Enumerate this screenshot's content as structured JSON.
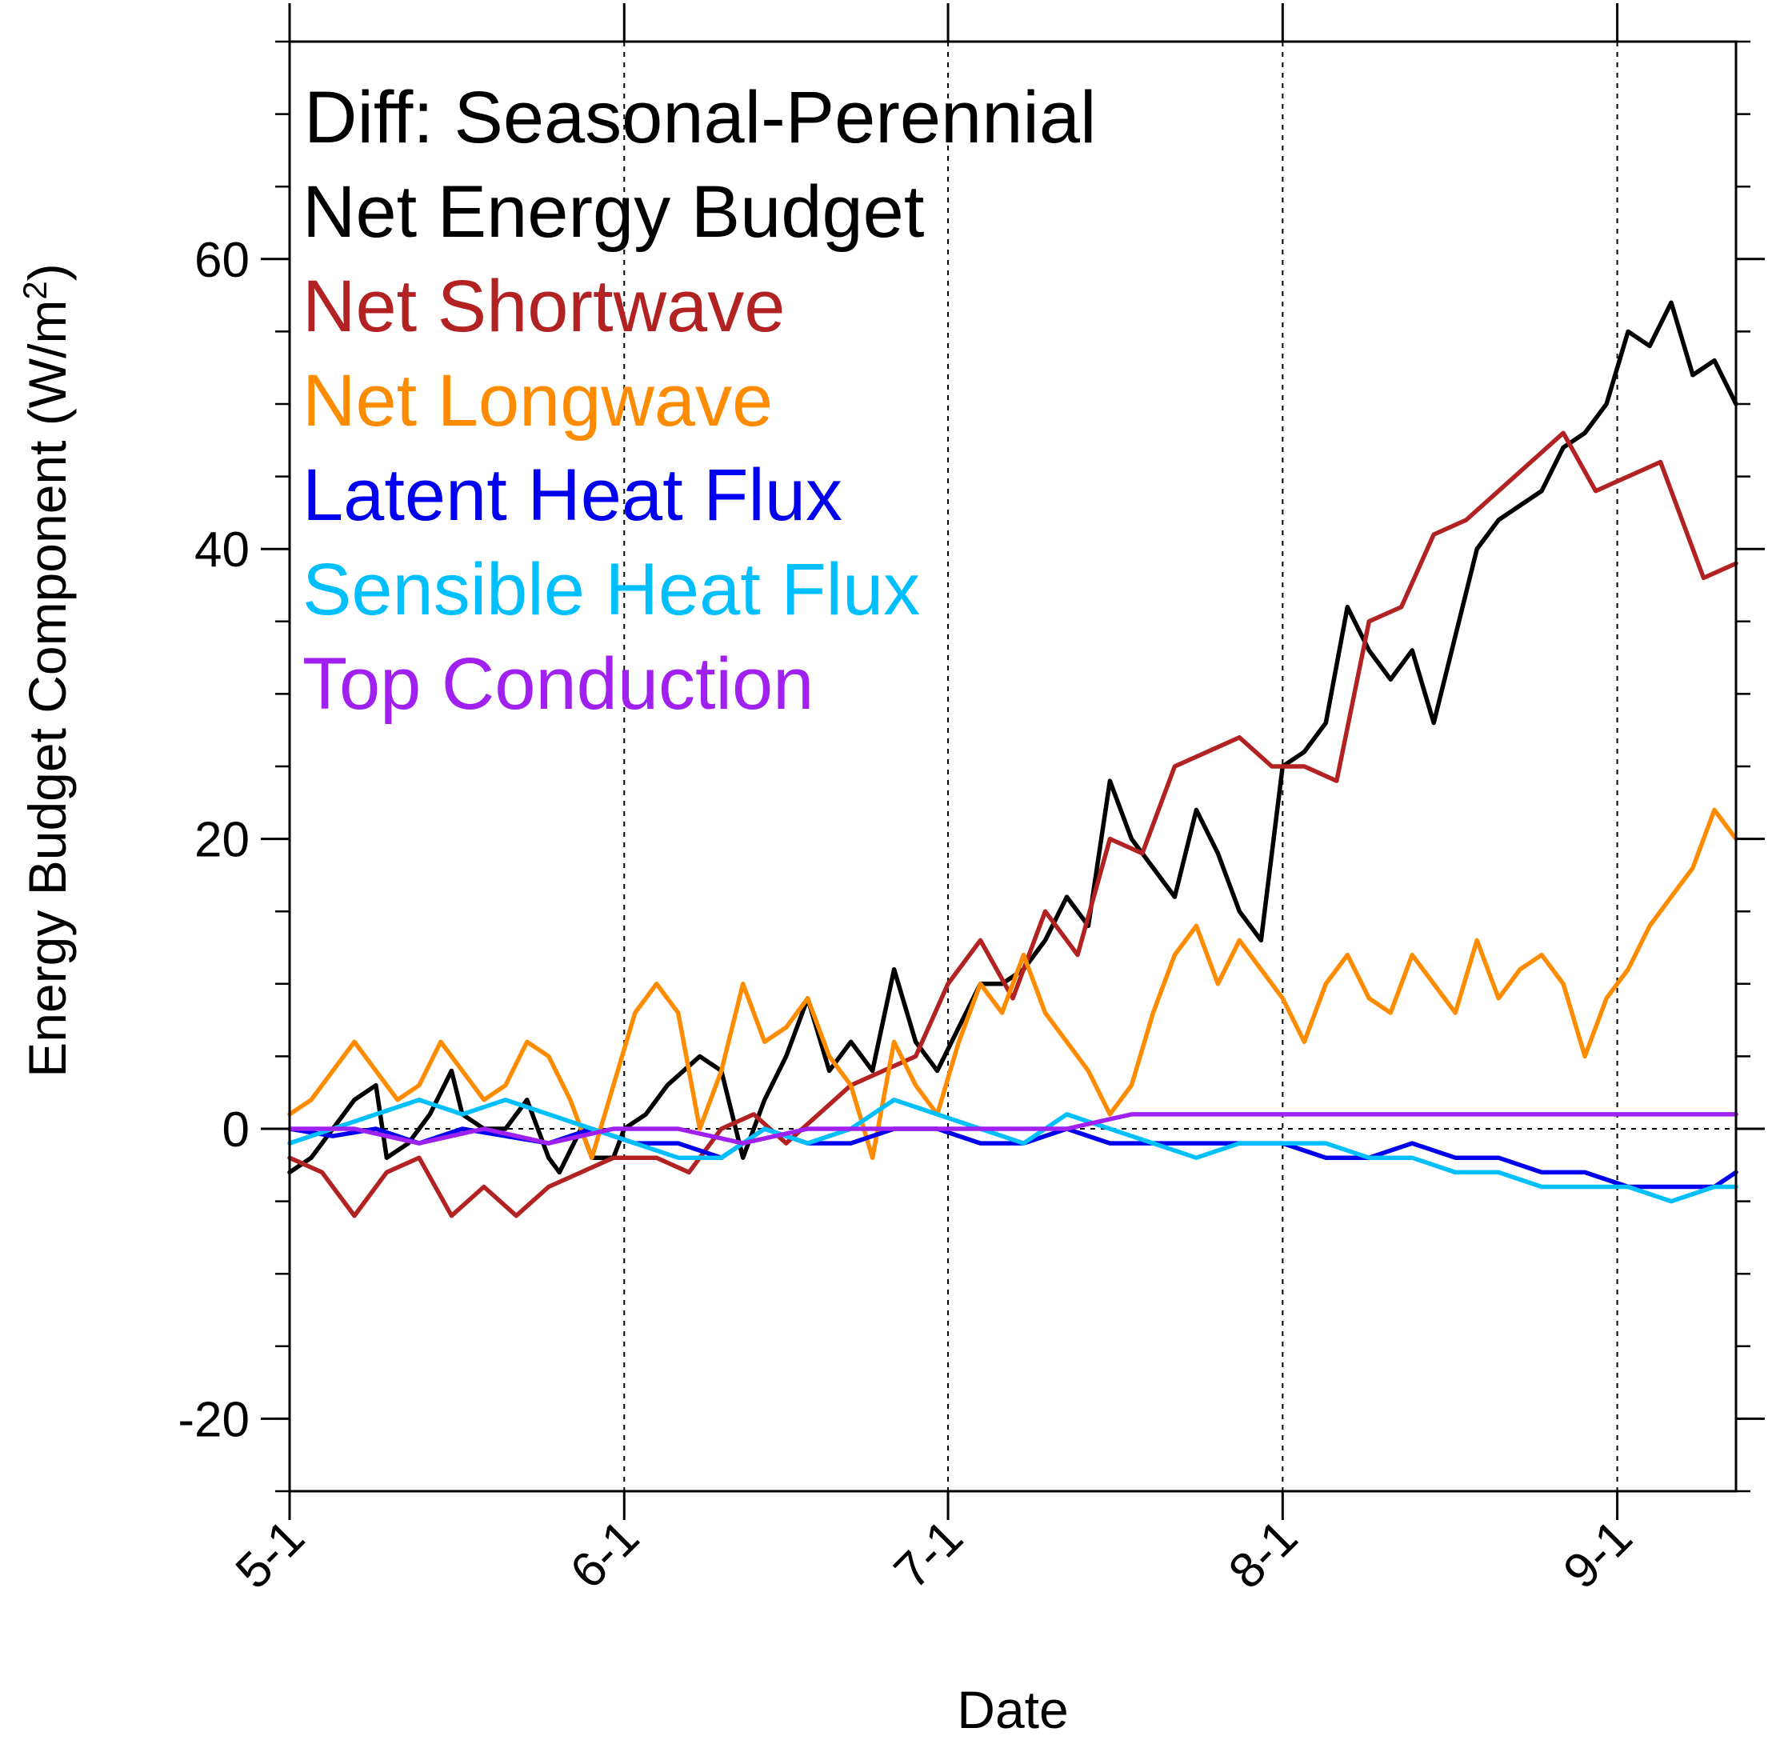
{
  "chart_data": {
    "type": "line",
    "title_lines": [
      "Diff: Seasonal-Perennial"
    ],
    "xlabel": "Date",
    "ylabel": "Energy Budget Component (W/m",
    "ylabel_sup": "2",
    "ylabel_end": ")",
    "xlim": [
      0,
      134
    ],
    "ylim": [
      -25,
      75
    ],
    "x_ticks": [
      {
        "value": 0,
        "label": "5-1"
      },
      {
        "value": 31,
        "label": "6-1"
      },
      {
        "value": 61,
        "label": "7-1"
      },
      {
        "value": 92,
        "label": "8-1"
      },
      {
        "value": 123,
        "label": "9-1"
      }
    ],
    "y_ticks": [
      {
        "value": -20,
        "label": "-20"
      },
      {
        "value": 0,
        "label": "0"
      },
      {
        "value": 20,
        "label": "20"
      },
      {
        "value": 40,
        "label": "40"
      },
      {
        "value": 60,
        "label": "60"
      }
    ],
    "y_minor_step": 5,
    "vertical_gridlines": [
      31,
      61,
      92,
      123
    ],
    "zero_line": true,
    "series": [
      {
        "name": "Net Energy Budget",
        "color": "#000000",
        "points": [
          [
            0,
            -3
          ],
          [
            2,
            -2
          ],
          [
            4,
            0
          ],
          [
            6,
            2
          ],
          [
            8,
            3
          ],
          [
            9,
            -2
          ],
          [
            11,
            -1
          ],
          [
            13,
            1
          ],
          [
            15,
            4
          ],
          [
            16,
            1
          ],
          [
            18,
            0
          ],
          [
            20,
            0
          ],
          [
            22,
            2
          ],
          [
            24,
            -2
          ],
          [
            25,
            -3
          ],
          [
            27,
            0
          ],
          [
            28,
            -2
          ],
          [
            30,
            -2
          ],
          [
            31,
            0
          ],
          [
            33,
            1
          ],
          [
            35,
            3
          ],
          [
            38,
            5
          ],
          [
            40,
            4
          ],
          [
            42,
            -2
          ],
          [
            44,
            2
          ],
          [
            46,
            5
          ],
          [
            48,
            9
          ],
          [
            50,
            4
          ],
          [
            52,
            6
          ],
          [
            54,
            4
          ],
          [
            56,
            11
          ],
          [
            58,
            6
          ],
          [
            60,
            4
          ],
          [
            62,
            7
          ],
          [
            64,
            10
          ],
          [
            66,
            10
          ],
          [
            68,
            11
          ],
          [
            70,
            13
          ],
          [
            72,
            16
          ],
          [
            74,
            14
          ],
          [
            76,
            24
          ],
          [
            78,
            20
          ],
          [
            80,
            18
          ],
          [
            82,
            16
          ],
          [
            84,
            22
          ],
          [
            86,
            19
          ],
          [
            88,
            15
          ],
          [
            90,
            13
          ],
          [
            92,
            25
          ],
          [
            94,
            26
          ],
          [
            96,
            28
          ],
          [
            98,
            36
          ],
          [
            100,
            33
          ],
          [
            102,
            31
          ],
          [
            104,
            33
          ],
          [
            106,
            28
          ],
          [
            108,
            34
          ],
          [
            110,
            40
          ],
          [
            112,
            42
          ],
          [
            114,
            43
          ],
          [
            116,
            44
          ],
          [
            118,
            47
          ],
          [
            120,
            48
          ],
          [
            122,
            50
          ],
          [
            124,
            55
          ],
          [
            126,
            54
          ],
          [
            128,
            57
          ],
          [
            130,
            52
          ],
          [
            132,
            53
          ],
          [
            134,
            50
          ]
        ]
      },
      {
        "name": "Net Shortwave",
        "color": "#b22222",
        "points": [
          [
            0,
            -2
          ],
          [
            3,
            -3
          ],
          [
            6,
            -6
          ],
          [
            9,
            -3
          ],
          [
            12,
            -2
          ],
          [
            15,
            -6
          ],
          [
            18,
            -4
          ],
          [
            21,
            -6
          ],
          [
            24,
            -4
          ],
          [
            27,
            -3
          ],
          [
            30,
            -2
          ],
          [
            31,
            -2
          ],
          [
            34,
            -2
          ],
          [
            37,
            -3
          ],
          [
            40,
            0
          ],
          [
            43,
            1
          ],
          [
            46,
            -1
          ],
          [
            49,
            1
          ],
          [
            52,
            3
          ],
          [
            55,
            4
          ],
          [
            58,
            5
          ],
          [
            61,
            10
          ],
          [
            64,
            13
          ],
          [
            67,
            9
          ],
          [
            70,
            15
          ],
          [
            73,
            12
          ],
          [
            76,
            20
          ],
          [
            79,
            19
          ],
          [
            82,
            25
          ],
          [
            85,
            26
          ],
          [
            88,
            27
          ],
          [
            91,
            25
          ],
          [
            94,
            25
          ],
          [
            97,
            24
          ],
          [
            100,
            35
          ],
          [
            103,
            36
          ],
          [
            106,
            41
          ],
          [
            109,
            42
          ],
          [
            112,
            44
          ],
          [
            115,
            46
          ],
          [
            118,
            48
          ],
          [
            121,
            44
          ],
          [
            124,
            45
          ],
          [
            127,
            46
          ],
          [
            130,
            40
          ],
          [
            131,
            38
          ],
          [
            134,
            39
          ]
        ]
      },
      {
        "name": "Net Longwave",
        "color": "#ff8c00",
        "points": [
          [
            0,
            1
          ],
          [
            2,
            2
          ],
          [
            4,
            4
          ],
          [
            6,
            6
          ],
          [
            8,
            4
          ],
          [
            10,
            2
          ],
          [
            12,
            3
          ],
          [
            14,
            6
          ],
          [
            16,
            4
          ],
          [
            18,
            2
          ],
          [
            20,
            3
          ],
          [
            22,
            6
          ],
          [
            24,
            5
          ],
          [
            26,
            2
          ],
          [
            28,
            -2
          ],
          [
            30,
            3
          ],
          [
            32,
            8
          ],
          [
            34,
            10
          ],
          [
            36,
            8
          ],
          [
            38,
            0
          ],
          [
            40,
            4
          ],
          [
            42,
            10
          ],
          [
            44,
            6
          ],
          [
            46,
            7
          ],
          [
            48,
            9
          ],
          [
            50,
            5
          ],
          [
            52,
            3
          ],
          [
            54,
            -2
          ],
          [
            56,
            6
          ],
          [
            58,
            3
          ],
          [
            60,
            1
          ],
          [
            62,
            6
          ],
          [
            64,
            10
          ],
          [
            66,
            8
          ],
          [
            68,
            12
          ],
          [
            70,
            8
          ],
          [
            72,
            6
          ],
          [
            74,
            4
          ],
          [
            76,
            1
          ],
          [
            78,
            3
          ],
          [
            80,
            8
          ],
          [
            82,
            12
          ],
          [
            84,
            14
          ],
          [
            86,
            10
          ],
          [
            88,
            13
          ],
          [
            90,
            11
          ],
          [
            92,
            9
          ],
          [
            94,
            6
          ],
          [
            96,
            10
          ],
          [
            98,
            12
          ],
          [
            100,
            9
          ],
          [
            102,
            8
          ],
          [
            104,
            12
          ],
          [
            106,
            10
          ],
          [
            108,
            8
          ],
          [
            110,
            13
          ],
          [
            112,
            9
          ],
          [
            114,
            11
          ],
          [
            116,
            12
          ],
          [
            118,
            10
          ],
          [
            120,
            5
          ],
          [
            122,
            9
          ],
          [
            124,
            11
          ],
          [
            126,
            14
          ],
          [
            128,
            16
          ],
          [
            130,
            18
          ],
          [
            132,
            22
          ],
          [
            134,
            20
          ]
        ]
      },
      {
        "name": "Latent Heat Flux",
        "color": "#0000ee",
        "points": [
          [
            0,
            0
          ],
          [
            4,
            -0.5
          ],
          [
            8,
            0
          ],
          [
            12,
            -1
          ],
          [
            16,
            0
          ],
          [
            20,
            -0.5
          ],
          [
            24,
            -1
          ],
          [
            28,
            0
          ],
          [
            32,
            -1
          ],
          [
            36,
            -1
          ],
          [
            40,
            -2
          ],
          [
            44,
            0
          ],
          [
            48,
            -1
          ],
          [
            52,
            -1
          ],
          [
            56,
            0
          ],
          [
            60,
            0
          ],
          [
            64,
            -1
          ],
          [
            68,
            -1
          ],
          [
            72,
            0
          ],
          [
            76,
            -1
          ],
          [
            80,
            -1
          ],
          [
            84,
            -1
          ],
          [
            88,
            -1
          ],
          [
            92,
            -1
          ],
          [
            96,
            -2
          ],
          [
            100,
            -2
          ],
          [
            104,
            -1
          ],
          [
            108,
            -2
          ],
          [
            112,
            -2
          ],
          [
            116,
            -3
          ],
          [
            120,
            -3
          ],
          [
            124,
            -4
          ],
          [
            128,
            -4
          ],
          [
            132,
            -4
          ],
          [
            134,
            -3
          ]
        ]
      },
      {
        "name": "Sensible Heat Flux",
        "color": "#00bfff",
        "points": [
          [
            0,
            -1
          ],
          [
            4,
            0
          ],
          [
            8,
            1
          ],
          [
            12,
            2
          ],
          [
            16,
            1
          ],
          [
            20,
            2
          ],
          [
            24,
            1
          ],
          [
            28,
            0
          ],
          [
            32,
            -1
          ],
          [
            36,
            -2
          ],
          [
            40,
            -2
          ],
          [
            44,
            0
          ],
          [
            48,
            -1
          ],
          [
            52,
            0
          ],
          [
            56,
            2
          ],
          [
            60,
            1
          ],
          [
            64,
            0
          ],
          [
            68,
            -1
          ],
          [
            72,
            1
          ],
          [
            76,
            0
          ],
          [
            80,
            -1
          ],
          [
            84,
            -2
          ],
          [
            88,
            -1
          ],
          [
            92,
            -1
          ],
          [
            96,
            -1
          ],
          [
            100,
            -2
          ],
          [
            104,
            -2
          ],
          [
            108,
            -3
          ],
          [
            112,
            -3
          ],
          [
            116,
            -4
          ],
          [
            120,
            -4
          ],
          [
            124,
            -4
          ],
          [
            128,
            -5
          ],
          [
            132,
            -4
          ],
          [
            134,
            -4
          ]
        ]
      },
      {
        "name": "Top Conduction",
        "color": "#a020f0",
        "points": [
          [
            0,
            0
          ],
          [
            6,
            0
          ],
          [
            12,
            -1
          ],
          [
            18,
            0
          ],
          [
            24,
            -1
          ],
          [
            30,
            0
          ],
          [
            36,
            0
          ],
          [
            42,
            -1
          ],
          [
            48,
            0
          ],
          [
            54,
            0
          ],
          [
            60,
            0
          ],
          [
            66,
            0
          ],
          [
            72,
            0
          ],
          [
            78,
            1
          ],
          [
            84,
            1
          ],
          [
            90,
            1
          ],
          [
            96,
            1
          ],
          [
            102,
            1
          ],
          [
            108,
            1
          ],
          [
            114,
            1
          ],
          [
            120,
            1
          ],
          [
            126,
            1
          ],
          [
            132,
            1
          ],
          [
            134,
            1
          ]
        ]
      }
    ]
  }
}
